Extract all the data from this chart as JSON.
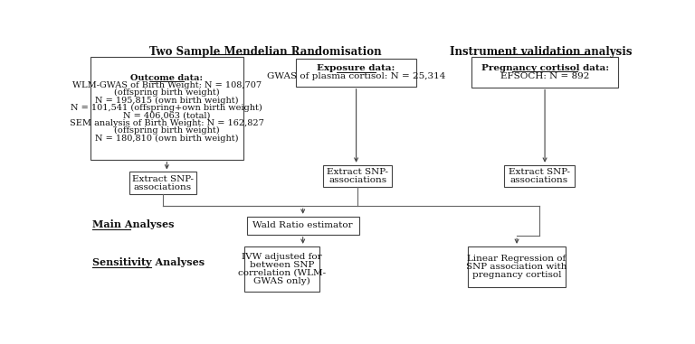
{
  "title_left": "Two Sample Mendelian Randomisation",
  "title_right": "Instrument validation analysis",
  "box1_title": "Outcome data:",
  "box1_lines": [
    "WLM-GWAS of Birth Weight: N = 108,707",
    "(offspring birth weight)",
    "N = 195,815 (own birth weight)",
    "N = 101,541 (offspring+own birth weight)",
    "N = 406,063 (total)",
    "SEM analysis of Birth Weight: N = 162,827",
    "(offspring birth weight)",
    "N = 180,810 (own birth weight)"
  ],
  "box2_title": "Exposure data:",
  "box2_lines": [
    "GWAS of plasma cortisol: N = 25,314"
  ],
  "box3_title": "Pregnancy cortisol data:",
  "box3_lines": [
    "EFSOCH: N = 892"
  ],
  "box4_lines": [
    "Extract SNP-",
    "associations"
  ],
  "box5_lines": [
    "Extract SNP-",
    "associations"
  ],
  "box6_lines": [
    "Extract SNP-",
    "associations"
  ],
  "box7_lines": [
    "Wald Ratio estimator"
  ],
  "box8_lines": [
    "IVW adjusted for",
    "between SNP",
    "correlation (WLM-",
    "GWAS only)"
  ],
  "box9_lines": [
    "Linear Regression of",
    "SNP association with",
    "pregnancy cortisol"
  ],
  "label_main": "Main Analyses",
  "label_sensitivity": "Sensitivity Analyses",
  "bg_color": "#ffffff",
  "box_edge_color": "#444444",
  "text_color": "#111111",
  "arrow_color": "#444444",
  "line_color": "#666666"
}
